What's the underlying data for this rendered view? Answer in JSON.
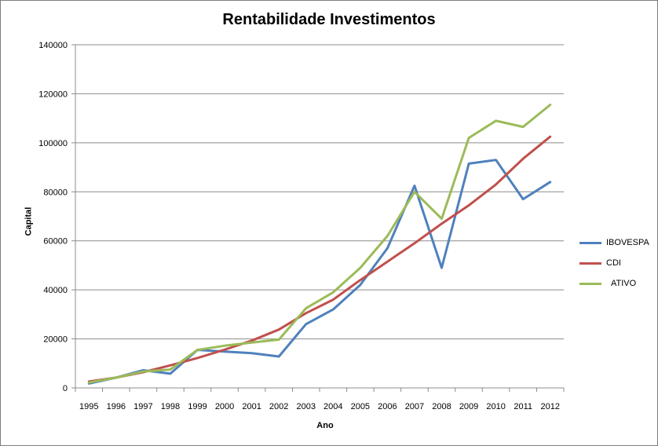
{
  "chart_data": {
    "type": "line",
    "title": "Rentabilidade Investimentos",
    "xlabel": "Ano",
    "ylabel": "Capital",
    "ylim": [
      0,
      140000
    ],
    "yticks": [
      "0",
      "20000",
      "40000",
      "60000",
      "80000",
      "100000",
      "120000",
      "140000"
    ],
    "ytick_values": [
      0,
      20000,
      40000,
      60000,
      80000,
      100000,
      120000,
      140000
    ],
    "categories": [
      "1995",
      "1996",
      "1997",
      "1998",
      "1999",
      "2000",
      "2001",
      "2002",
      "2003",
      "2004",
      "2005",
      "2006",
      "2007",
      "2008",
      "2009",
      "2010",
      "2011",
      "2012"
    ],
    "grid": true,
    "legend_position": "right",
    "series": [
      {
        "name": "IBOVESPA",
        "color": "#4f81bd",
        "values": [
          1800,
          4200,
          7200,
          5800,
          15500,
          14800,
          14200,
          12800,
          26000,
          32000,
          42000,
          57000,
          82500,
          49000,
          91500,
          93000,
          77000,
          84000
        ]
      },
      {
        "name": "CDI",
        "color": "#c0504d",
        "values": [
          2600,
          4200,
          6400,
          9200,
          12200,
          15600,
          19300,
          23800,
          30500,
          36000,
          44000,
          51500,
          59000,
          67000,
          74500,
          83000,
          93500,
          102500
        ]
      },
      {
        "name": "ATIVO",
        "color": "#9bbb59",
        "values": [
          2200,
          4200,
          6700,
          7500,
          15500,
          17200,
          18500,
          19700,
          32500,
          39000,
          49000,
          62000,
          80000,
          69000,
          102000,
          109000,
          106500,
          115500
        ]
      }
    ]
  }
}
